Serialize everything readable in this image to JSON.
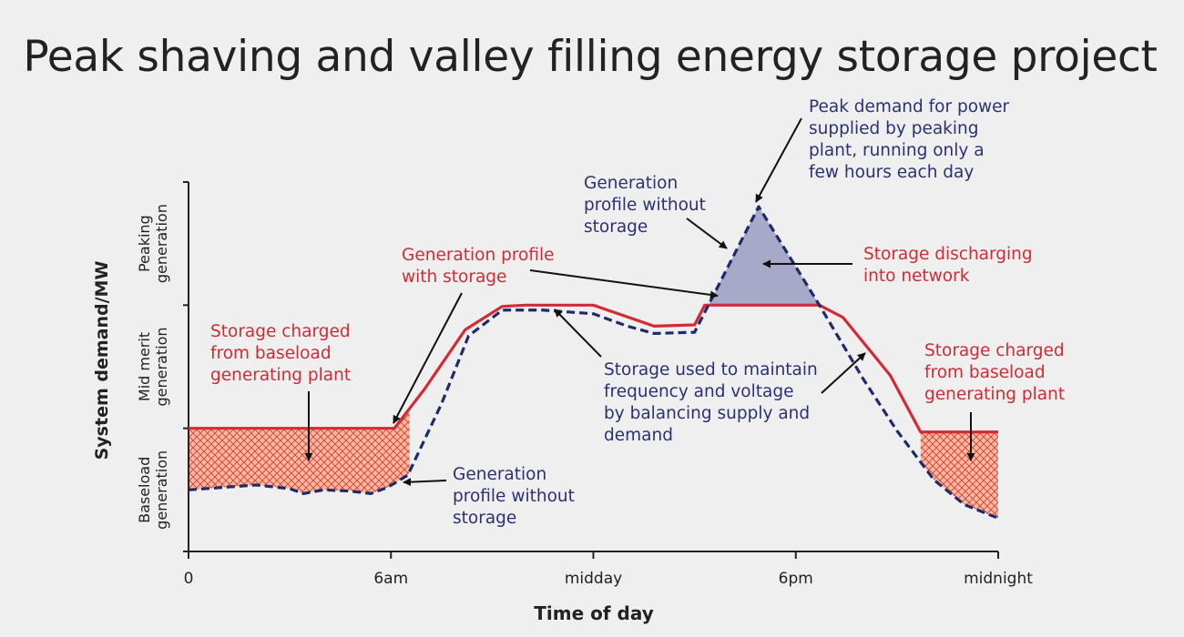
{
  "title": "Peak shaving and valley filling energy storage project",
  "colors": {
    "with_storage": "#d42a33",
    "without_storage": "#1f2a6b",
    "charge_fill": "#f3b9a2",
    "hatch": "#e23b2e",
    "discharge_fill": "#a8a9c8",
    "axis": "#222222",
    "arrow": "#111111",
    "blue_text": "#2a3177",
    "red_text": "#d42a33"
  },
  "chart_data": {
    "type": "line",
    "xlabel": "Time of day",
    "ylabel": "System demand/MW",
    "xlim": [
      0,
      24
    ],
    "ylim": [
      0,
      3
    ],
    "x_ticks": [
      {
        "value": 0,
        "label": "0"
      },
      {
        "value": 6,
        "label": "6am"
      },
      {
        "value": 12,
        "label": "midday"
      },
      {
        "value": 18,
        "label": "6pm"
      },
      {
        "value": 24,
        "label": "midnight"
      }
    ],
    "y_bands": [
      {
        "from": 0,
        "to": 1,
        "lines": [
          "Baseload",
          "generation"
        ]
      },
      {
        "from": 1,
        "to": 2,
        "lines": [
          "Mid merit",
          "generation"
        ]
      },
      {
        "from": 2,
        "to": 3,
        "lines": [
          "Peaking",
          "generation"
        ]
      }
    ],
    "series": [
      {
        "name": "Generation profile with storage",
        "style": "solid",
        "x": [
          0,
          6.1,
          7,
          8.2,
          9.3,
          10,
          12,
          13.8,
          15,
          15.3,
          18.7,
          19.4,
          20.8,
          21.7,
          24
        ],
        "y": [
          1,
          1,
          1.32,
          1.8,
          1.99,
          2,
          2,
          1.83,
          1.84,
          2,
          2,
          1.9,
          1.43,
          0.97,
          0.97
        ]
      },
      {
        "name": "Generation profile without storage",
        "style": "dashed",
        "x": [
          0,
          1,
          2,
          3,
          3.4,
          4,
          4.8,
          5.4,
          5.9,
          6.5,
          7.5,
          8.3,
          9.3,
          10.5,
          12,
          13,
          13.8,
          15,
          16.9,
          18.7,
          20,
          21,
          22.1,
          23,
          24
        ],
        "y": [
          0.5,
          0.52,
          0.54,
          0.51,
          0.47,
          0.5,
          0.49,
          0.47,
          0.52,
          0.62,
          1.2,
          1.75,
          1.96,
          1.96,
          1.93,
          1.83,
          1.77,
          1.78,
          2.8,
          2,
          1.4,
          0.98,
          0.58,
          0.38,
          0.27
        ]
      }
    ],
    "annotations": [
      {
        "id": "peak",
        "color": "blue",
        "lines": [
          "Peak demand for power",
          "supplied by peaking",
          "plant, running only a",
          "few hours each day"
        ]
      },
      {
        "id": "gen-without-top",
        "color": "blue",
        "lines": [
          "Generation",
          "profile without",
          "storage"
        ]
      },
      {
        "id": "gen-with",
        "color": "red",
        "lines": [
          "Generation profile",
          "with storage"
        ]
      },
      {
        "id": "discharge",
        "color": "red",
        "lines": [
          "Storage discharging",
          "into network"
        ]
      },
      {
        "id": "charged-left",
        "color": "red",
        "lines": [
          "Storage charged",
          "from baseload",
          "generating plant"
        ]
      },
      {
        "id": "balancing",
        "color": "blue",
        "lines": [
          "Storage used to maintain",
          "frequency and voltage",
          "by balancing supply and",
          "demand"
        ]
      },
      {
        "id": "charged-right",
        "color": "red",
        "lines": [
          "Storage charged",
          "from baseload",
          "generating plant"
        ]
      },
      {
        "id": "gen-without-bottom",
        "color": "blue",
        "lines": [
          "Generation",
          "profile without",
          "storage"
        ]
      }
    ]
  }
}
